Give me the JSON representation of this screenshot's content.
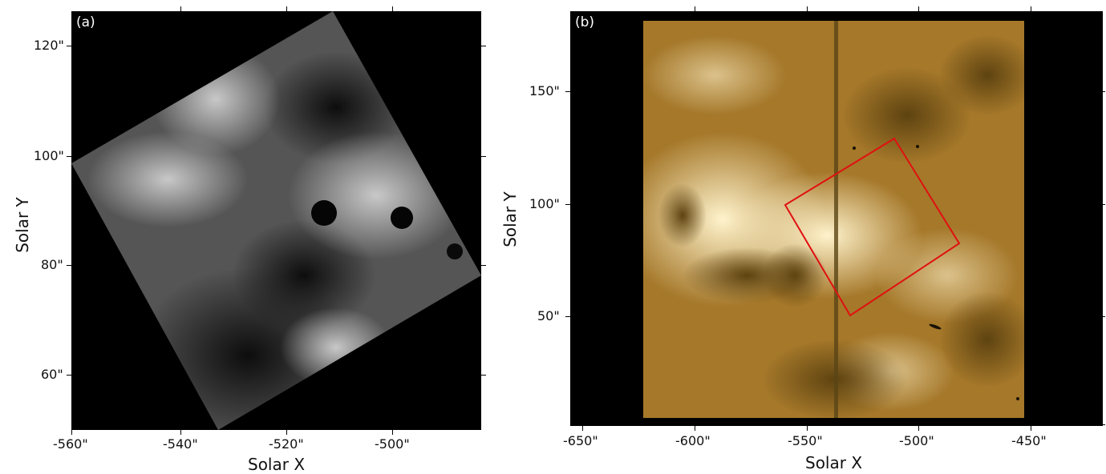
{
  "panel_a": {
    "label": "(a)",
    "x_axis_title": "Solar X",
    "y_axis_title": "Solar Y",
    "x_ticks": [
      "-560\"",
      "-540\"",
      "-520\"",
      "-500\""
    ],
    "y_ticks": [
      "120\"",
      "100\"",
      "80\"",
      "60\""
    ],
    "colormap": "grayscale",
    "content": "rotated chromospheric image, black surround"
  },
  "panel_b": {
    "label": "(b)",
    "x_axis_title": "Solar X",
    "y_axis_title": "Solar Y",
    "x_ticks": [
      "-650\"",
      "-600\"",
      "-550\"",
      "-500\"",
      "-450\""
    ],
    "y_ticks": [
      "150\"",
      "100\"",
      "50\""
    ],
    "colormap": "gold/brown",
    "overlay_color": "#e01010",
    "content": "EUV image with rotated red box marking panel (a) field of view"
  }
}
